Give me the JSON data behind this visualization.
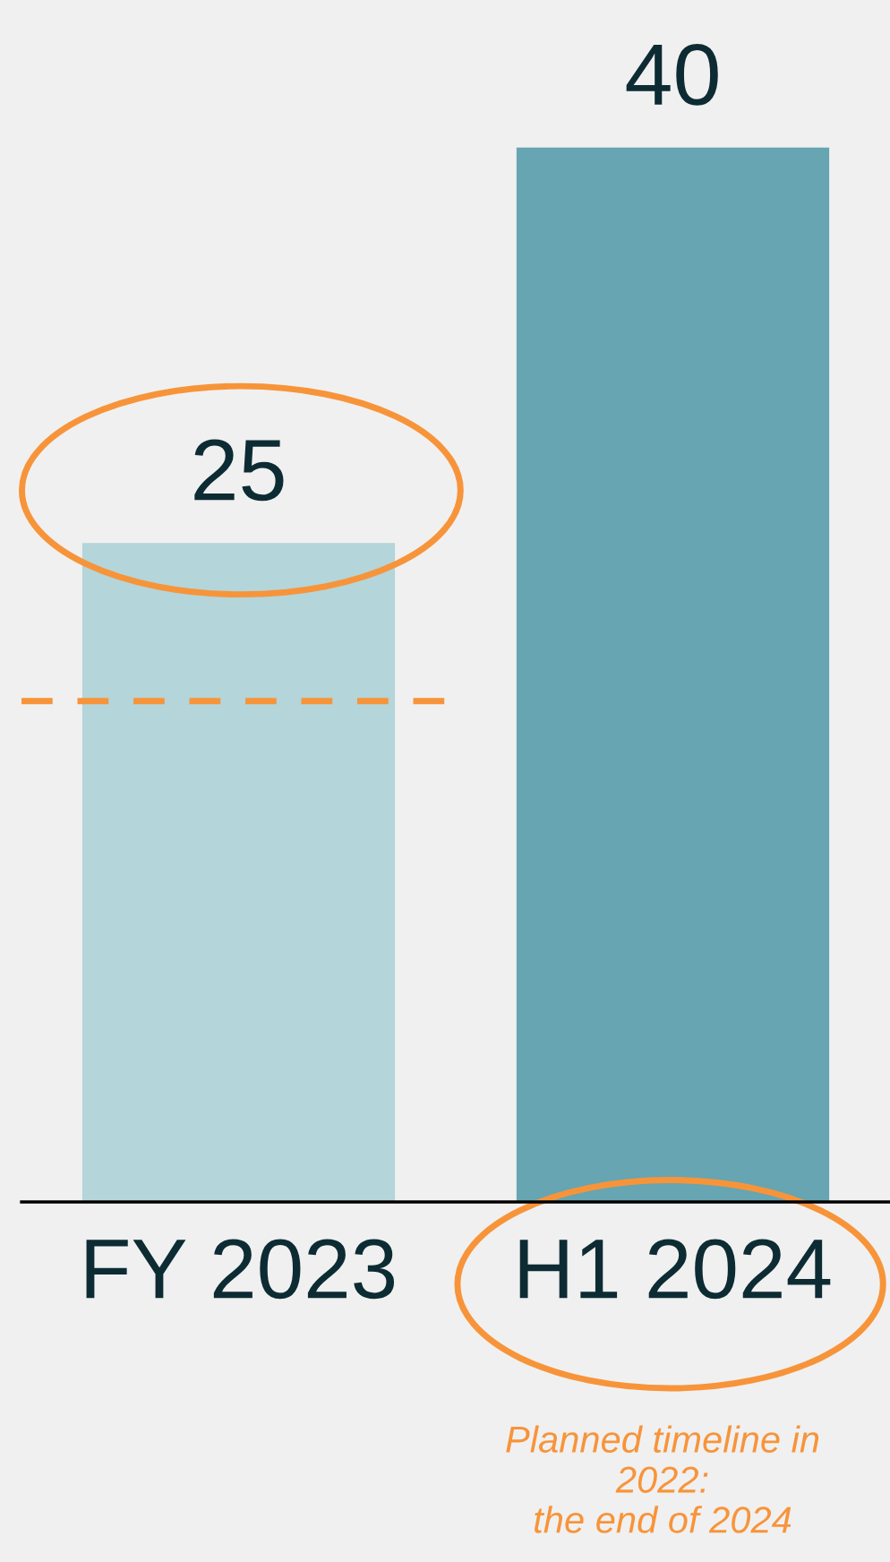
{
  "chart_data": {
    "type": "bar",
    "categories": [
      "FY 2023",
      "H1 2024"
    ],
    "values": [
      25,
      40
    ],
    "colors": [
      "#b4d5d9",
      "#66a5b1"
    ],
    "data_labels": true,
    "grid": false,
    "ref_lines": [
      {
        "axis": "y",
        "value": 19,
        "color": "#f7943a",
        "line_style": "dashed"
      }
    ],
    "annotations": [
      "Planned timeline in\n2022:\nthe end of 2024"
    ]
  }
}
